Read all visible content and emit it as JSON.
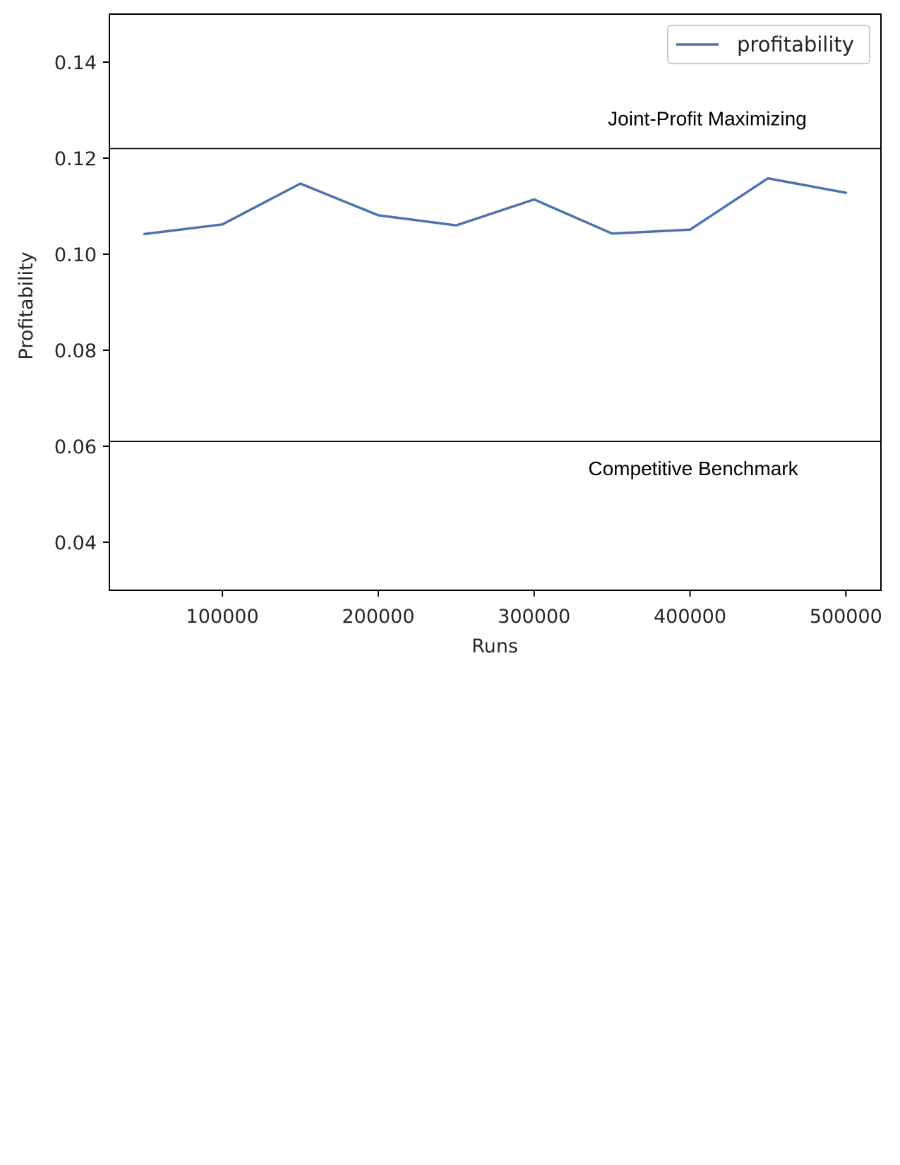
{
  "chart_data": {
    "type": "line",
    "xlabel": "Runs",
    "ylabel": "Profitability",
    "xlim": [
      27500,
      522500
    ],
    "ylim": [
      0.03,
      0.15
    ],
    "x_ticks": [
      100000,
      200000,
      300000,
      400000,
      500000
    ],
    "x_tick_labels": [
      "100000",
      "200000",
      "300000",
      "400000",
      "500000"
    ],
    "y_ticks": [
      0.04,
      0.06,
      0.08,
      0.1,
      0.12,
      0.14
    ],
    "y_tick_labels": [
      "0.04",
      "0.06",
      "0.08",
      "0.10",
      "0.12",
      "0.14"
    ],
    "grid": false,
    "legend_position": "top-right",
    "series": [
      {
        "name": "profitability",
        "color": "#4c72b0",
        "x": [
          50000,
          100000,
          150000,
          200000,
          250000,
          300000,
          350000,
          400000,
          450000,
          500000
        ],
        "y": [
          0.1042,
          0.1062,
          0.1147,
          0.1081,
          0.106,
          0.1114,
          0.1043,
          0.1051,
          0.1158,
          0.1128
        ]
      }
    ],
    "reference_lines": [
      {
        "label": "Joint-Profit Maximizing",
        "y": 0.122,
        "color": "#000000"
      },
      {
        "label": "Competitive Benchmark",
        "y": 0.061,
        "color": "#000000"
      }
    ]
  }
}
